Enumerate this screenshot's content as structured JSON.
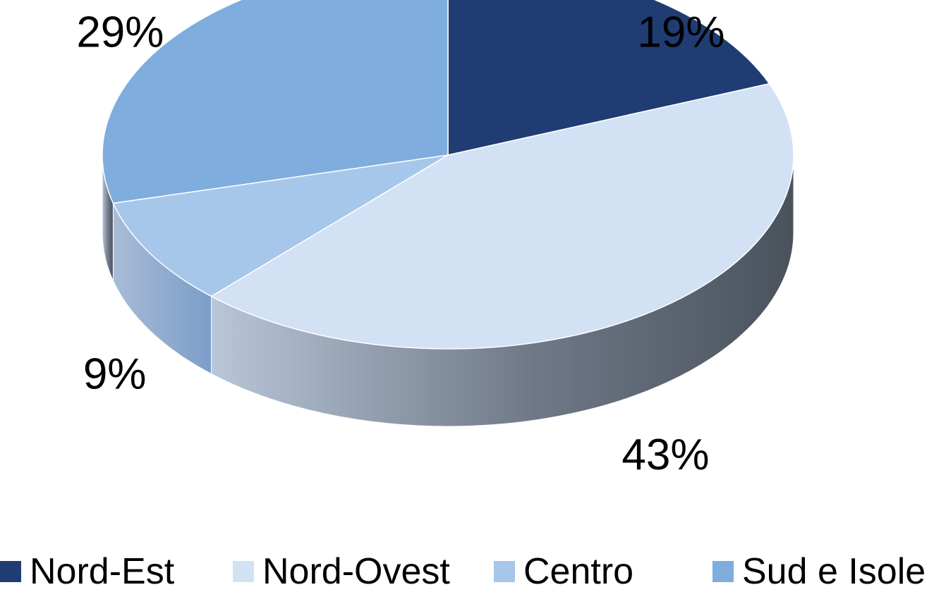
{
  "chart_data": {
    "type": "pie",
    "categories": [
      "Nord-Est",
      "Nord-Ovest",
      "Centro",
      "Sud e Isole"
    ],
    "values": [
      19,
      43,
      9,
      29
    ],
    "labels": [
      "19%",
      "43%",
      "9%",
      "29%"
    ],
    "colors": [
      "#1f3d73",
      "#d2e1f4",
      "#a6c7ea",
      "#7eadde"
    ],
    "legend_position": "bottom",
    "three_d": true
  }
}
